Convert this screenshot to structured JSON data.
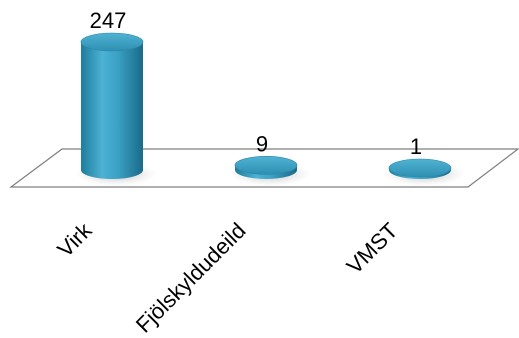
{
  "chart_data": {
    "type": "bar",
    "style": "3d-cylinder",
    "categories": [
      "Virk",
      "Fjölskyldudeild",
      "VMST"
    ],
    "values": [
      247,
      9,
      1
    ],
    "ylim": [
      0,
      247
    ],
    "grid": false,
    "legend": "none",
    "colors": {
      "bar": "#3aa0c4",
      "bar_dark": "#1d7090",
      "bar_light": "#7fd0ea",
      "floor_stroke": "#7f7f7f"
    }
  }
}
